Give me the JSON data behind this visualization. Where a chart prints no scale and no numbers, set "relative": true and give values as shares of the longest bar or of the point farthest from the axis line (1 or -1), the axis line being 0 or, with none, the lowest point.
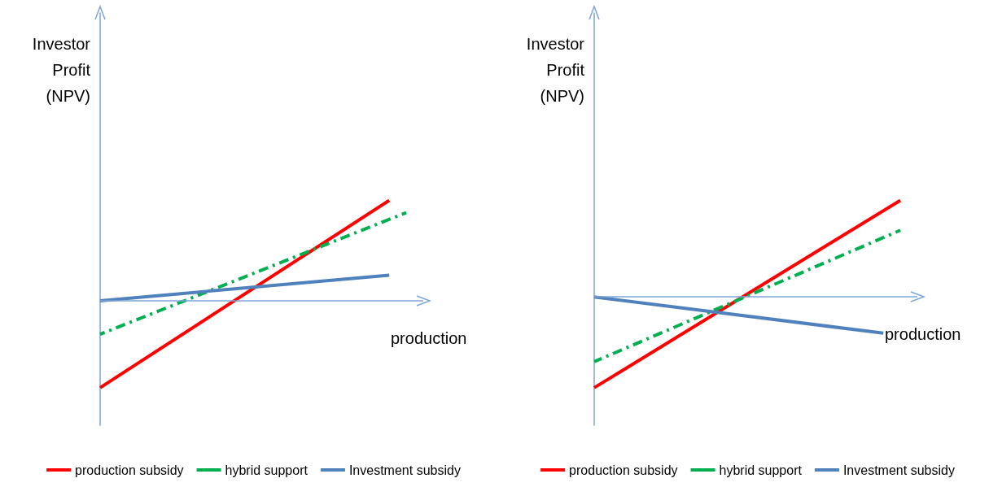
{
  "chart_data": [
    {
      "type": "line",
      "relative": true,
      "ylabel": "Investor\nProfit\n(NPV)",
      "xlabel": "production",
      "categories": [
        null,
        null,
        null,
        null,
        null,
        null,
        null,
        null,
        null,
        null,
        null,
        null,
        null,
        null,
        null,
        null,
        null,
        null,
        null,
        null
      ],
      "grid": false,
      "legend": "bottom",
      "marker": "none",
      "ref_lines": [
        {
          "axis": "y",
          "value": 0,
          "color": "#7ea6d8"
        }
      ],
      "series": [
        {
          "name": "production subsidy",
          "color": "#ff0000",
          "line_style": "solid",
          "values": [
            -0.865,
            null,
            null,
            null,
            null,
            null,
            null,
            null,
            null,
            null,
            null,
            null,
            null,
            null,
            null,
            null,
            null,
            1,
            null,
            null
          ]
        },
        {
          "name": "hybrid support",
          "color": "#00b050",
          "line_style": "dashed",
          "values": [
            -0.333,
            null,
            null,
            null,
            null,
            null,
            null,
            null,
            null,
            null,
            null,
            null,
            null,
            null,
            null,
            null,
            null,
            null,
            0.878,
            null
          ]
        },
        {
          "name": "Investment subsidy",
          "color": "#4f81bd",
          "line_style": "solid",
          "values": [
            0,
            null,
            null,
            null,
            null,
            null,
            null,
            null,
            null,
            null,
            null,
            null,
            null,
            null,
            null,
            null,
            null,
            0.256,
            null,
            null
          ]
        }
      ]
    },
    {
      "type": "line",
      "relative": true,
      "ylabel": "Investor\nProfit\n(NPV)",
      "xlabel": "production",
      "categories": [
        null,
        null,
        null,
        null,
        null,
        null,
        null,
        null,
        null,
        null,
        null,
        null,
        null,
        null,
        null,
        null,
        null,
        null,
        null,
        null
      ],
      "grid": false,
      "legend": "bottom",
      "marker": "none",
      "ref_lines": [
        {
          "axis": "y",
          "value": 0,
          "color": "#7ea6d8"
        }
      ],
      "series": [
        {
          "name": "production subsidy",
          "color": "#ff0000",
          "line_style": "solid",
          "values": [
            -0.94,
            null,
            null,
            null,
            null,
            null,
            null,
            null,
            null,
            null,
            null,
            null,
            null,
            null,
            null,
            null,
            null,
            null,
            1,
            null
          ]
        },
        {
          "name": "hybrid support",
          "color": "#00b050",
          "line_style": "dashed",
          "values": [
            -0.67,
            null,
            null,
            null,
            null,
            null,
            null,
            null,
            null,
            null,
            null,
            null,
            null,
            null,
            null,
            null,
            null,
            null,
            0.69,
            null
          ]
        },
        {
          "name": "Investment subsidy",
          "color": "#4f81bd",
          "line_style": "solid",
          "values": [
            0,
            null,
            null,
            null,
            null,
            null,
            null,
            null,
            null,
            null,
            null,
            null,
            null,
            null,
            null,
            null,
            null,
            -0.375,
            null,
            null
          ]
        }
      ]
    }
  ]
}
